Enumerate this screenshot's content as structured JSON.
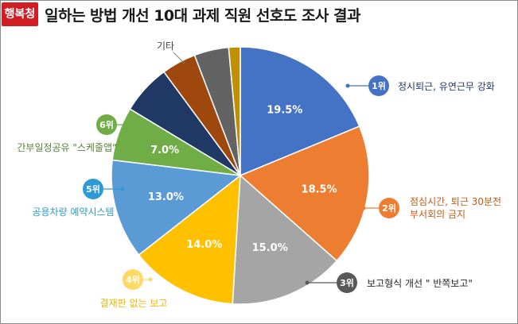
{
  "header": {
    "badge": "행복청",
    "title": "일하는 방법 개선 10대 과제 직원 선호도 조사 결과"
  },
  "chart_data": {
    "type": "pie",
    "title": "일하는 방법 개선 10대 과제 직원 선호도 조사 결과",
    "slices": [
      {
        "label": "정시퇴근, 유연근무 강화",
        "value": 19.5,
        "value_label": "19.5%",
        "rank": "1위",
        "color": "#4472c4",
        "rank_color": "#4472c4",
        "text_color": "#1f3864"
      },
      {
        "label": "점심시간, 퇴근 30분전 부서회의 금지",
        "value": 18.5,
        "value_label": "18.5%",
        "rank": "2위",
        "color": "#ed7d31",
        "rank_color": "#ed7d31",
        "text_color": "#c55a11"
      },
      {
        "label": "보고형식 개선 \" 반쪽보고\"",
        "value": 15.0,
        "value_label": "15.0%",
        "rank": "3위",
        "color": "#a5a5a5",
        "rank_color": "#595959",
        "text_color": "#262626"
      },
      {
        "label": "결재판 없는 보고",
        "value": 14.0,
        "value_label": "14.0%",
        "rank": "4위",
        "color": "#ffc000",
        "rank_color": "#ffd966",
        "text_color": "#f4b400"
      },
      {
        "label": "공용차량 예약시스템",
        "value": 13.0,
        "value_label": "13.0%",
        "rank": "5위",
        "color": "#5b9bd5",
        "rank_color": "#2e9bd6",
        "text_color": "#2e9bd6"
      },
      {
        "label": "간부일정공유 \"스케줄앱\"",
        "value": 7.0,
        "value_label": "7.0%",
        "rank": "6위",
        "color": "#70ad47",
        "rank_color": "#70ad47",
        "text_color": "#548235"
      },
      {
        "label": "",
        "value": 6.5,
        "value_label": "",
        "rank": "",
        "color": "#203864",
        "rank_color": "",
        "text_color": ""
      },
      {
        "label": "",
        "value": 4.5,
        "value_label": "",
        "rank": "",
        "color": "#9e480e",
        "rank_color": "",
        "text_color": ""
      },
      {
        "label": "",
        "value": 4.5,
        "value_label": "",
        "rank": "",
        "color": "#636363",
        "rank_color": "",
        "text_color": ""
      },
      {
        "label": "",
        "value": 1.5,
        "value_label": "",
        "rank": "",
        "color": "#bf9000",
        "rank_color": "",
        "text_color": ""
      }
    ],
    "other_label": "기타"
  }
}
